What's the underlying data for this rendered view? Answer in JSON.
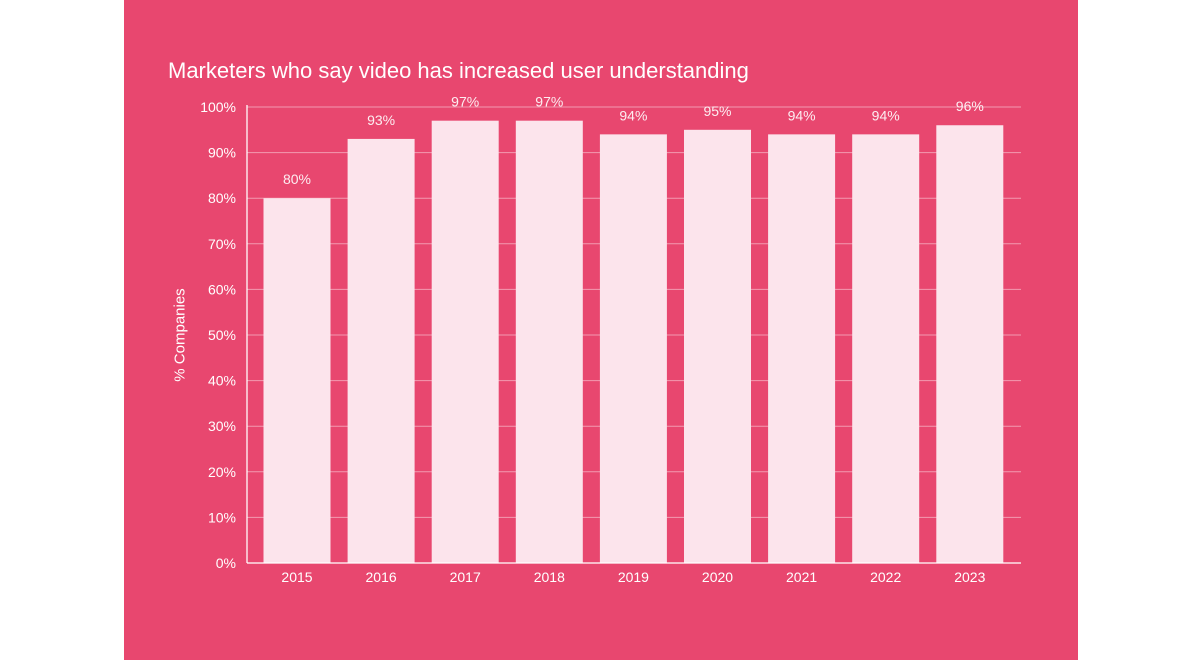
{
  "colors": {
    "background": "#E8476F",
    "bar": "#FCE4EC",
    "text": "#FFFFFF"
  },
  "chart_data": {
    "type": "bar",
    "title": "Marketers who say video has increased user understanding",
    "xlabel": "",
    "ylabel": "% Companies",
    "categories": [
      "2015",
      "2016",
      "2017",
      "2018",
      "2019",
      "2020",
      "2021",
      "2022",
      "2023"
    ],
    "values": [
      80,
      93,
      97,
      97,
      94,
      95,
      94,
      94,
      96
    ],
    "data_labels": [
      "80%",
      "93%",
      "97%",
      "97%",
      "94%",
      "95%",
      "94%",
      "94%",
      "96%"
    ],
    "ylim": [
      0,
      100
    ],
    "yticks": [
      "0%",
      "10%",
      "20%",
      "30%",
      "40%",
      "50%",
      "60%",
      "70%",
      "80%",
      "90%",
      "100%"
    ],
    "grid": true,
    "legend": "none"
  }
}
